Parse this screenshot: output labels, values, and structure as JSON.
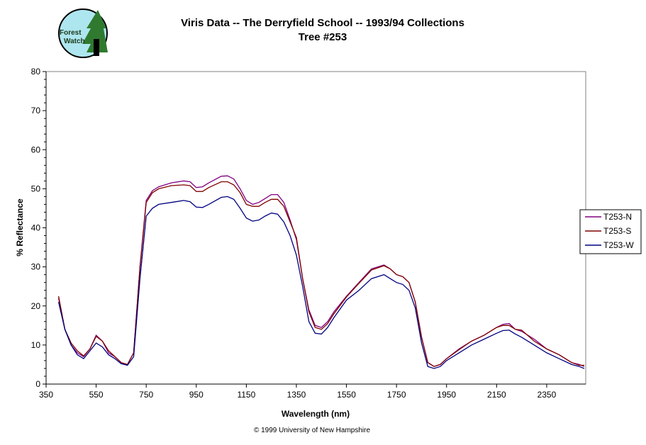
{
  "logo": {
    "text": "Forest Watch",
    "line1": "Forest",
    "line2": "Watch"
  },
  "copyright": "© 1999 University of New Hampshire",
  "chart_data": {
    "type": "line",
    "title": "Viris Data -- The Derryfield School -- 1993/94 Collections",
    "subtitle": "Tree #253",
    "xlabel": "Wavelength (nm)",
    "ylabel": "% Reflectance",
    "xlim": [
      350,
      2506
    ],
    "ylim": [
      0,
      80
    ],
    "xticks": [
      350,
      550,
      750,
      950,
      1150,
      1350,
      1550,
      1750,
      1950,
      2150,
      2350
    ],
    "yticks": [
      0,
      10,
      20,
      30,
      40,
      50,
      60,
      70,
      80
    ],
    "grid": false,
    "legend_position": "right",
    "x": [
      400,
      425,
      450,
      475,
      500,
      525,
      550,
      575,
      600,
      625,
      650,
      675,
      700,
      725,
      750,
      775,
      800,
      850,
      900,
      925,
      950,
      975,
      1000,
      1050,
      1075,
      1100,
      1125,
      1150,
      1175,
      1200,
      1225,
      1250,
      1275,
      1300,
      1325,
      1350,
      1375,
      1400,
      1425,
      1450,
      1475,
      1500,
      1550,
      1600,
      1650,
      1700,
      1725,
      1750,
      1775,
      1800,
      1825,
      1850,
      1875,
      1900,
      1925,
      1950,
      2000,
      2050,
      2100,
      2150,
      2175,
      2200,
      2225,
      2250,
      2300,
      2350,
      2400,
      2450,
      2480,
      2500
    ],
    "series": [
      {
        "name": "T253-N",
        "color": "#800080",
        "values": [
          22,
          14,
          10,
          8,
          7,
          9,
          12.5,
          11,
          8,
          7,
          5.5,
          5,
          8,
          30,
          47,
          49.5,
          50.5,
          51.5,
          52,
          51.8,
          50.3,
          50.5,
          51.5,
          53.2,
          53.3,
          52.5,
          50,
          47,
          46,
          46.5,
          47.5,
          48.5,
          48.5,
          46.5,
          42,
          37,
          27,
          19,
          15,
          14.5,
          16,
          18.5,
          22.5,
          26,
          29.5,
          30.5,
          29.5,
          28,
          27.5,
          26,
          21,
          12,
          5.5,
          4.5,
          5,
          6.5,
          9,
          11,
          12.5,
          14.5,
          15.3,
          15.5,
          14,
          13.5,
          11.5,
          9,
          7.5,
          5.5,
          5,
          4.5
        ]
      },
      {
        "name": "T253-S",
        "color": "#800000",
        "values": [
          22.5,
          14,
          10.5,
          8.5,
          7.2,
          9,
          12.2,
          11,
          8.5,
          7,
          5.5,
          5,
          8,
          30,
          46.5,
          49,
          50,
          50.8,
          51,
          50.8,
          49.3,
          49.3,
          50.3,
          51.8,
          51.8,
          51,
          49,
          46,
          45.5,
          45.5,
          46.5,
          47.3,
          47.3,
          45.5,
          41.5,
          37.5,
          27,
          18.5,
          14.5,
          14,
          15.5,
          18,
          22.3,
          25.8,
          29.2,
          30.3,
          29.5,
          28,
          27.5,
          26,
          21,
          12,
          5.5,
          4.5,
          5,
          6.5,
          8.8,
          11,
          12.5,
          14.5,
          15,
          15,
          14,
          13.8,
          11,
          9,
          7.5,
          5.5,
          4.8,
          4.8
        ]
      },
      {
        "name": "T253-W",
        "color": "#000080",
        "values": [
          21,
          14,
          10,
          7.5,
          6.5,
          8.5,
          10.5,
          9.5,
          7.5,
          6.5,
          5.2,
          4.8,
          7,
          27,
          43,
          45,
          46,
          46.5,
          47,
          46.7,
          45.3,
          45.2,
          46,
          47.8,
          48,
          47.3,
          45,
          42.5,
          41.7,
          42,
          43,
          43.8,
          43.5,
          41.5,
          38,
          33,
          25,
          16,
          13,
          12.8,
          14.5,
          17,
          21.5,
          24,
          27,
          28,
          27,
          26,
          25.5,
          24,
          19.5,
          10.5,
          4.5,
          4,
          4.5,
          6,
          8,
          10,
          11.5,
          13,
          13.7,
          13.8,
          12.8,
          12,
          10,
          8,
          6.5,
          5,
          4.5,
          4
        ]
      }
    ]
  }
}
